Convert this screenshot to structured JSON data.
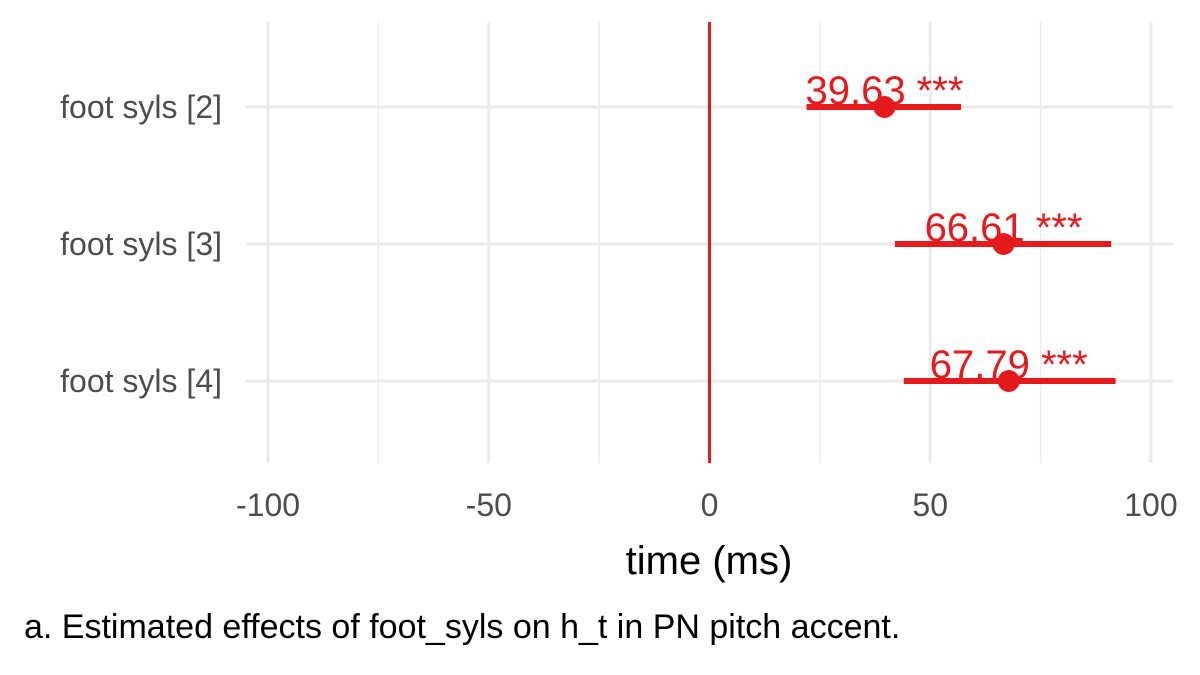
{
  "chart_data": {
    "type": "forest",
    "title": "",
    "xlabel": "time (ms)",
    "ylabel": "",
    "xlim": [
      -105,
      105
    ],
    "xticks": [
      -100,
      -50,
      0,
      50,
      100
    ],
    "xtick_labels": [
      "-100",
      "-50",
      "0",
      "50",
      "100"
    ],
    "grid": true,
    "reference_line": 0,
    "categories": [
      "foot syls [2]",
      "foot syls [3]",
      "foot syls [4]"
    ],
    "estimates": [
      39.63,
      66.61,
      67.79
    ],
    "ci_low": [
      22,
      42,
      44
    ],
    "ci_high": [
      57,
      91,
      92
    ],
    "labels": [
      "39.63 ***",
      "66.61 ***",
      "67.79 ***"
    ],
    "colors": {
      "point": "#e41a1c",
      "reference": "#e41a1c",
      "grid": "#ebebeb"
    }
  },
  "caption": "a. Estimated effects of foot_syls on h_t in PN pitch accent."
}
